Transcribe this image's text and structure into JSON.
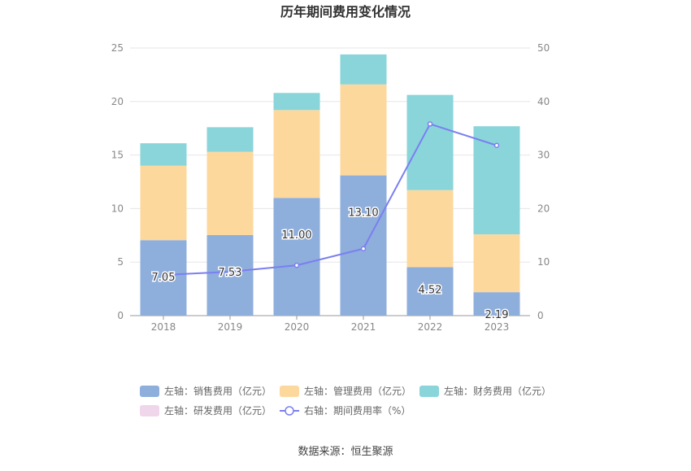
{
  "chart_data": {
    "type": "bar",
    "title": "历年期间费用变化情况",
    "source": "数据来源：恒生聚源",
    "categories": [
      "2018",
      "2019",
      "2020",
      "2021",
      "2022",
      "2023"
    ],
    "y_left": {
      "min": 0,
      "max": 25,
      "ticks": [
        "0",
        "5",
        "10",
        "15",
        "20",
        "25"
      ]
    },
    "y_right": {
      "min": 0,
      "max": 50,
      "ticks": [
        "0",
        "10",
        "20",
        "30",
        "40",
        "50"
      ]
    },
    "series": [
      {
        "name": "左轴：销售费用（亿元）",
        "color": "#8eaedc",
        "values": [
          7.05,
          7.53,
          11.0,
          13.1,
          4.52,
          2.19
        ],
        "labels": [
          "7.05",
          "7.53",
          "11.00",
          "13.10",
          "4.52",
          "2.19"
        ]
      },
      {
        "name": "左轴：管理费用（亿元）",
        "color": "#fdd89d",
        "values": [
          6.95,
          7.77,
          8.2,
          8.5,
          7.2,
          5.4
        ]
      },
      {
        "name": "左轴：财务费用（亿元）",
        "color": "#89d5da",
        "values": [
          2.1,
          2.3,
          1.6,
          2.8,
          8.9,
          10.1
        ]
      },
      {
        "name": "左轴：研发费用（亿元）",
        "color": "#f0d6ea",
        "values": [
          0,
          0,
          0,
          0,
          0,
          0
        ]
      }
    ],
    "line": {
      "name": "右轴：期间费用率（%）",
      "color": "#7b7ff0",
      "values": [
        7.6,
        8.2,
        9.4,
        12.5,
        35.8,
        31.8
      ]
    },
    "legend_position": "bottom",
    "grid": true
  }
}
